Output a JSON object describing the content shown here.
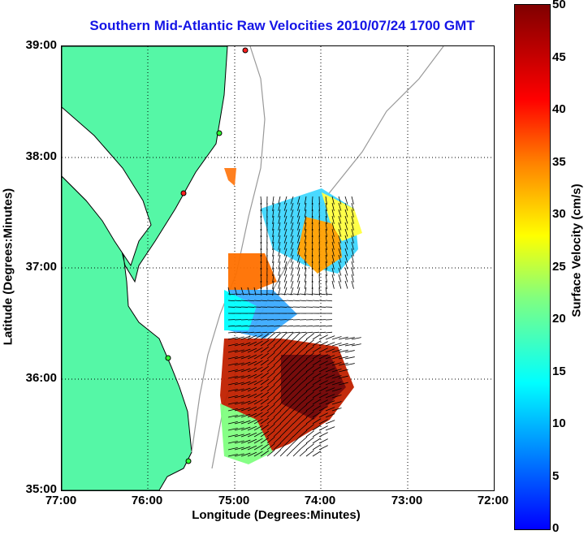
{
  "title": "Southern Mid-Atlantic Raw Velocities 2010/07/24 1700 GMT",
  "x_axis": {
    "label": "Longitude (Degrees:Minutes)",
    "ticks": [
      "77:00",
      "76:00",
      "75:00",
      "74:00",
      "73:00",
      "72:00"
    ]
  },
  "y_axis": {
    "label": "Latitude (Degrees:Minutes)",
    "ticks": [
      "39:00",
      "38:00",
      "37:00",
      "36:00",
      "35:00"
    ]
  },
  "colorbar": {
    "label": "Surface Velocity (cm/s)",
    "ticks": [
      "50",
      "45",
      "40",
      "35",
      "30",
      "25",
      "20",
      "15",
      "10",
      "5",
      "0"
    ],
    "range": [
      0,
      50
    ]
  },
  "colors": {
    "title": "#1414e6",
    "land": "#55f7a6",
    "water": "#ffffff",
    "coastline": "#000000",
    "bathymetry": "#999999",
    "grid": "#000000"
  },
  "map": {
    "extent_lon": [
      -77,
      -72
    ],
    "extent_lat": [
      35,
      39
    ],
    "grid": "dotted"
  }
}
